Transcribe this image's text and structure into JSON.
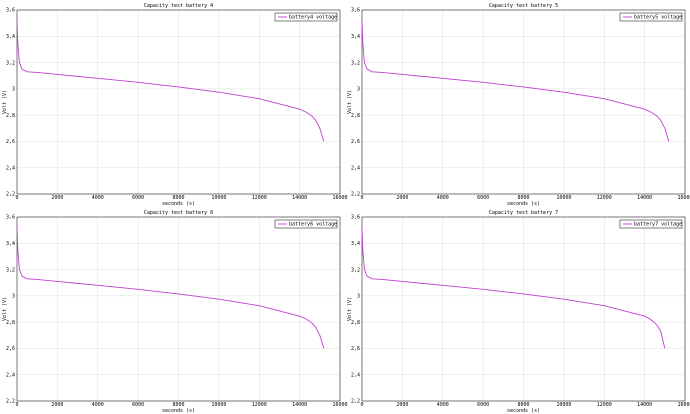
{
  "chart_data": [
    {
      "type": "line",
      "title": "Capacity test battery 4",
      "xlabel": "seconds (s)",
      "ylabel": "Volt (V)",
      "xlim": [
        0,
        16000
      ],
      "ylim": [
        2.2,
        3.4
      ],
      "xticks": [
        "0",
        "2000",
        "4000",
        "6000",
        "8000",
        "10000",
        "12000",
        "14000",
        "16000"
      ],
      "yticks": [
        "2,2",
        "2,4",
        "2,6",
        "2,8",
        "3",
        "3,2",
        "3,4",
        "3,6"
      ],
      "grid": true,
      "legend_position": "top-right",
      "series": [
        {
          "name": "battery4 voltage",
          "color": "#c040d0",
          "x": [
            0,
            40,
            120,
            250,
            500,
            1000,
            2000,
            3000,
            4000,
            5000,
            6000,
            7000,
            8000,
            9000,
            10000,
            11000,
            12000,
            12500,
            13000,
            13500,
            14000,
            14300,
            14600,
            14800,
            15000,
            15200
          ],
          "y": [
            3.52,
            3.35,
            3.2,
            3.15,
            3.13,
            3.125,
            3.11,
            3.095,
            3.08,
            3.065,
            3.05,
            3.032,
            3.015,
            2.995,
            2.975,
            2.95,
            2.925,
            2.905,
            2.885,
            2.865,
            2.845,
            2.825,
            2.795,
            2.76,
            2.7,
            2.6
          ]
        }
      ]
    },
    {
      "type": "line",
      "title": "Capacity test battery 5",
      "xlabel": "seconds (s)",
      "ylabel": "Volt (V)",
      "xlim": [
        0,
        16000
      ],
      "ylim": [
        2.2,
        3.4
      ],
      "xticks": [
        "0",
        "2000",
        "4000",
        "6000",
        "8000",
        "10000",
        "12000",
        "14000",
        "16000"
      ],
      "yticks": [
        "2,2",
        "2,4",
        "2,6",
        "2,8",
        "3",
        "3,2",
        "3,4",
        "3,6"
      ],
      "grid": true,
      "legend_position": "top-right",
      "series": [
        {
          "name": "battery5 voltage",
          "color": "#c040d0",
          "x": [
            0,
            40,
            120,
            250,
            500,
            1000,
            2000,
            3000,
            4000,
            5000,
            6000,
            7000,
            8000,
            9000,
            10000,
            11000,
            12000,
            12500,
            13000,
            13500,
            14000,
            14300,
            14600,
            14800,
            15000,
            15200
          ],
          "y": [
            3.52,
            3.35,
            3.2,
            3.15,
            3.13,
            3.125,
            3.11,
            3.095,
            3.08,
            3.065,
            3.05,
            3.032,
            3.015,
            2.995,
            2.975,
            2.95,
            2.925,
            2.905,
            2.885,
            2.865,
            2.845,
            2.825,
            2.795,
            2.76,
            2.7,
            2.6
          ]
        }
      ]
    },
    {
      "type": "line",
      "title": "Capacity test battery 6",
      "xlabel": "seconds (s)",
      "ylabel": "Volt (V)",
      "xlim": [
        0,
        16000
      ],
      "ylim": [
        2.2,
        3.4
      ],
      "xticks": [
        "0",
        "2000",
        "4000",
        "6000",
        "8000",
        "10000",
        "12000",
        "14000",
        "16000"
      ],
      "yticks": [
        "2,2",
        "2,4",
        "2,6",
        "2,8",
        "3",
        "3,2",
        "3,4",
        "3,6"
      ],
      "grid": true,
      "legend_position": "top-right",
      "series": [
        {
          "name": "battery6 voltage",
          "color": "#c040d0",
          "x": [
            0,
            40,
            120,
            250,
            500,
            1000,
            2000,
            3000,
            4000,
            5000,
            6000,
            7000,
            8000,
            9000,
            10000,
            11000,
            12000,
            12500,
            13000,
            13500,
            14000,
            14300,
            14600,
            14800,
            15000,
            15200
          ],
          "y": [
            3.52,
            3.35,
            3.2,
            3.15,
            3.13,
            3.125,
            3.11,
            3.095,
            3.08,
            3.065,
            3.05,
            3.032,
            3.015,
            2.995,
            2.975,
            2.95,
            2.925,
            2.905,
            2.885,
            2.865,
            2.845,
            2.825,
            2.795,
            2.76,
            2.7,
            2.6
          ]
        }
      ]
    },
    {
      "type": "line",
      "title": "Capacity test battery 7",
      "xlabel": "seconds (s)",
      "ylabel": "Volt (V)",
      "xlim": [
        0,
        16000
      ],
      "ylim": [
        2.2,
        3.4
      ],
      "xticks": [
        "0",
        "2000",
        "4000",
        "6000",
        "8000",
        "10000",
        "12000",
        "14000",
        "16000"
      ],
      "yticks": [
        "2,2",
        "2,4",
        "2,6",
        "2,8",
        "3",
        "3,2",
        "3,4",
        "3,6"
      ],
      "grid": true,
      "legend_position": "top-right",
      "series": [
        {
          "name": "battery7 voltage",
          "color": "#c040d0",
          "x": [
            0,
            40,
            120,
            250,
            500,
            1000,
            2000,
            3000,
            4000,
            5000,
            6000,
            7000,
            8000,
            9000,
            10000,
            11000,
            12000,
            12500,
            13000,
            13500,
            14000,
            14300,
            14600,
            14800,
            15000
          ],
          "y": [
            3.52,
            3.35,
            3.2,
            3.15,
            3.13,
            3.125,
            3.11,
            3.095,
            3.08,
            3.065,
            3.05,
            3.032,
            3.015,
            2.995,
            2.975,
            2.95,
            2.925,
            2.905,
            2.885,
            2.865,
            2.845,
            2.82,
            2.78,
            2.73,
            2.6
          ]
        }
      ]
    }
  ]
}
